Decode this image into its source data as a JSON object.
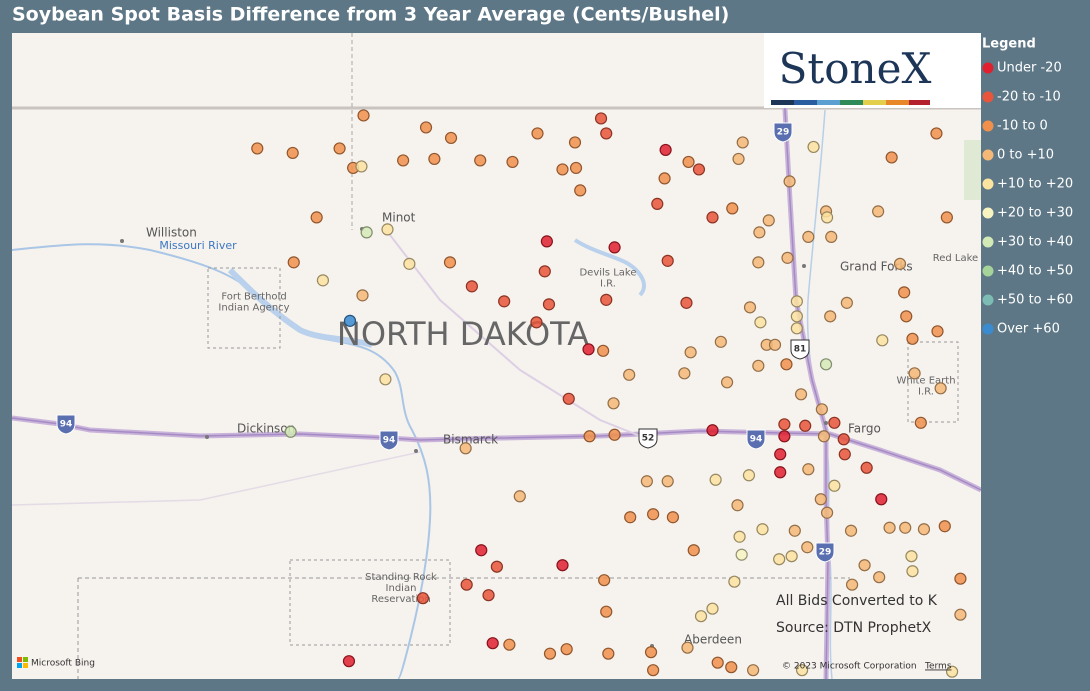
{
  "title": "Soybean Spot Basis Difference from 3 Year Average (Cents/Bushel)",
  "logo": "StoneX",
  "legend": {
    "title": "Legend",
    "items": [
      {
        "label": "Under -20",
        "color": "#e0202f"
      },
      {
        "label": "-20 to -10",
        "color": "#e8553a"
      },
      {
        "label": "-10 to 0",
        "color": "#f0904b"
      },
      {
        "label": "0 to +10",
        "color": "#f5b877"
      },
      {
        "label": "+10 to +20",
        "color": "#fbe3a0"
      },
      {
        "label": "+20 to +30",
        "color": "#f7f4c2"
      },
      {
        "label": "+30 to +40",
        "color": "#d3eab6"
      },
      {
        "label": "+40 to +50",
        "color": "#a5d39a"
      },
      {
        "label": "+50 to +60",
        "color": "#7cbcb4"
      },
      {
        "label": "Over +60",
        "color": "#3a8bd0"
      }
    ]
  },
  "map_labels": [
    "Williston",
    "Minot",
    "Grand Forks",
    "Fargo",
    "Bismarck",
    "Dickinson",
    "Aberdeen",
    "Missouri River",
    "Fort Berthold Indian Agency",
    "Devils Lake I.R.",
    "Standing Rock Indian Reservation",
    "NORTH DAKOTA",
    "White Earth I.R.",
    "Red Lake Res",
    "29",
    "94",
    "94",
    "94",
    "52",
    "81",
    "29"
  ],
  "credits": {
    "note": "All Bids Converted to K",
    "source": "Source: DTN ProphetX",
    "bing": "Microsoft Bing",
    "copyright": "© 2023 Microsoft Corporation",
    "terms": "Terms"
  },
  "points": [
    [
      -101.29,
      48.98,
      2
    ],
    [
      -100.69,
      48.9,
      2
    ],
    [
      -100.45,
      48.83,
      2
    ],
    [
      -99.62,
      48.86,
      2
    ],
    [
      -99.01,
      48.96,
      1
    ],
    [
      -98.96,
      48.86,
      1
    ],
    [
      -98.39,
      48.75,
      0
    ],
    [
      -97.65,
      48.8,
      3
    ],
    [
      -96.97,
      48.77,
      4
    ],
    [
      -95.79,
      48.86,
      2
    ],
    [
      -102.31,
      48.76,
      2
    ],
    [
      -101.97,
      48.73,
      2
    ],
    [
      -101.52,
      48.76,
      2
    ],
    [
      -101.39,
      48.63,
      2
    ],
    [
      -101.31,
      48.64,
      4
    ],
    [
      -100.91,
      48.68,
      2
    ],
    [
      -100.61,
      48.69,
      2
    ],
    [
      -100.17,
      48.68,
      2
    ],
    [
      -99.86,
      48.67,
      2
    ],
    [
      -99.38,
      48.62,
      2
    ],
    [
      -99.25,
      48.63,
      2
    ],
    [
      -99.26,
      48.8,
      2
    ],
    [
      -98.17,
      48.67,
      2
    ],
    [
      -98.07,
      48.62,
      1
    ],
    [
      -97.69,
      48.69,
      3
    ],
    [
      -96.22,
      48.7,
      2
    ],
    [
      -98.4,
      48.56,
      2
    ],
    [
      -97.2,
      48.54,
      3
    ],
    [
      -99.21,
      48.48,
      2
    ],
    [
      -98.47,
      48.39,
      1
    ],
    [
      -97.94,
      48.3,
      1
    ],
    [
      -97.75,
      48.36,
      2
    ],
    [
      -96.85,
      48.34,
      3
    ],
    [
      -96.84,
      48.3,
      4
    ],
    [
      -96.35,
      48.34,
      3
    ],
    [
      -95.69,
      48.3,
      2
    ],
    [
      -101.74,
      48.3,
      2
    ],
    [
      -101.26,
      48.2,
      6
    ],
    [
      -101.06,
      48.22,
      4
    ],
    [
      -99.53,
      48.14,
      0
    ],
    [
      -98.88,
      48.1,
      0
    ],
    [
      -98.37,
      48.01,
      1
    ],
    [
      -97.49,
      48.2,
      3
    ],
    [
      -97.4,
      48.28,
      3
    ],
    [
      -97.02,
      48.17,
      3
    ],
    [
      -96.8,
      48.17,
      3
    ],
    [
      -101.96,
      48.0,
      2
    ],
    [
      -100.85,
      47.99,
      4
    ],
    [
      -100.46,
      48.0,
      2
    ],
    [
      -99.55,
      47.94,
      1
    ],
    [
      -97.5,
      48.0,
      3
    ],
    [
      -97.22,
      48.03,
      3
    ],
    [
      -96.14,
      47.99,
      3
    ],
    [
      -101.68,
      47.88,
      4
    ],
    [
      -100.25,
      47.84,
      1
    ],
    [
      -101.3,
      47.78,
      3
    ],
    [
      -99.94,
      47.74,
      1
    ],
    [
      -99.51,
      47.72,
      1
    ],
    [
      -98.96,
      47.75,
      1
    ],
    [
      -98.19,
      47.73,
      1
    ],
    [
      -97.58,
      47.7,
      3
    ],
    [
      -97.13,
      47.74,
      4
    ],
    [
      -96.65,
      47.73,
      3
    ],
    [
      -96.1,
      47.8,
      2
    ],
    [
      -101.42,
      47.61,
      9
    ],
    [
      -99.63,
      47.6,
      1
    ],
    [
      -97.48,
      47.6,
      4
    ],
    [
      -97.13,
      47.64,
      4
    ],
    [
      -96.81,
      47.64,
      3
    ],
    [
      -96.08,
      47.64,
      2
    ],
    [
      -95.78,
      47.54,
      2
    ],
    [
      -99.13,
      47.42,
      0
    ],
    [
      -98.99,
      47.41,
      2
    ],
    [
      -98.15,
      47.4,
      3
    ],
    [
      -97.86,
      47.47,
      3
    ],
    [
      -97.42,
      47.45,
      3
    ],
    [
      -97.34,
      47.45,
      3
    ],
    [
      -97.13,
      47.56,
      4
    ],
    [
      -96.02,
      47.49,
      2
    ],
    [
      -96.31,
      47.48,
      4
    ],
    [
      -97.5,
      47.31,
      3
    ],
    [
      -97.23,
      47.32,
      2
    ],
    [
      -96.85,
      47.32,
      6
    ],
    [
      -98.74,
      47.25,
      3
    ],
    [
      -98.21,
      47.26,
      3
    ],
    [
      -101.08,
      47.22,
      4
    ],
    [
      -98.89,
      47.06,
      3
    ],
    [
      -99.32,
      47.09,
      1
    ],
    [
      -97.09,
      47.12,
      3
    ],
    [
      -97.8,
      47.2,
      3
    ],
    [
      -96.89,
      47.02,
      3
    ],
    [
      -96.0,
      47.26,
      3
    ],
    [
      -95.75,
      47.16,
      3
    ],
    [
      -101.99,
      46.87,
      6
    ],
    [
      -100.31,
      46.76,
      3
    ],
    [
      -99.12,
      46.84,
      2
    ],
    [
      -98.88,
      46.85,
      2
    ],
    [
      -97.94,
      46.88,
      0
    ],
    [
      -97.25,
      46.84,
      0
    ],
    [
      -97.25,
      46.92,
      1
    ],
    [
      -97.05,
      46.91,
      1
    ],
    [
      -96.77,
      46.93,
      1
    ],
    [
      -96.87,
      46.84,
      3
    ],
    [
      -96.68,
      46.82,
      1
    ],
    [
      -95.94,
      46.93,
      2
    ],
    [
      -97.29,
      46.72,
      0
    ],
    [
      -96.67,
      46.72,
      1
    ],
    [
      -97.29,
      46.6,
      0
    ],
    [
      -97.02,
      46.62,
      3
    ],
    [
      -96.46,
      46.63,
      1
    ],
    [
      -98.57,
      46.54,
      3
    ],
    [
      -98.37,
      46.54,
      3
    ],
    [
      -97.91,
      46.55,
      4
    ],
    [
      -97.59,
      46.58,
      4
    ],
    [
      -96.77,
      46.51,
      4
    ],
    [
      -99.79,
      46.44,
      3
    ],
    [
      -97.7,
      46.38,
      3
    ],
    [
      -96.9,
      46.42,
      3
    ],
    [
      -96.32,
      46.42,
      0
    ],
    [
      -96.84,
      46.33,
      3
    ],
    [
      -98.73,
      46.3,
      2
    ],
    [
      -98.51,
      46.32,
      2
    ],
    [
      -98.32,
      46.3,
      2
    ],
    [
      -97.46,
      46.22,
      4
    ],
    [
      -97.68,
      46.17,
      4
    ],
    [
      -97.15,
      46.21,
      3
    ],
    [
      -96.61,
      46.21,
      3
    ],
    [
      -96.24,
      46.23,
      3
    ],
    [
      -96.09,
      46.23,
      3
    ],
    [
      -95.91,
      46.22,
      3
    ],
    [
      -95.71,
      46.24,
      2
    ],
    [
      -100.16,
      46.08,
      0
    ],
    [
      -100.01,
      45.97,
      1
    ],
    [
      -99.38,
      45.98,
      0
    ],
    [
      -98.12,
      46.08,
      2
    ],
    [
      -97.66,
      46.05,
      5
    ],
    [
      -97.3,
      46.02,
      4
    ],
    [
      -97.18,
      46.04,
      4
    ],
    [
      -97.03,
      46.1,
      3
    ],
    [
      -96.48,
      45.98,
      3
    ],
    [
      -96.03,
      46.04,
      4
    ],
    [
      -96.02,
      45.94,
      4
    ],
    [
      -100.3,
      45.85,
      1
    ],
    [
      -100.09,
      45.78,
      1
    ],
    [
      -100.72,
      45.76,
      1
    ],
    [
      -98.98,
      45.88,
      2
    ],
    [
      -97.73,
      45.87,
      4
    ],
    [
      -96.6,
      45.85,
      3
    ],
    [
      -96.34,
      45.9,
      3
    ],
    [
      -95.56,
      45.89,
      2
    ],
    [
      -98.96,
      45.67,
      2
    ],
    [
      -97.94,
      45.69,
      4
    ],
    [
      -98.05,
      45.64,
      4
    ],
    [
      -95.56,
      45.65,
      3
    ],
    [
      -100.05,
      45.46,
      0
    ],
    [
      -99.89,
      45.45,
      2
    ],
    [
      -99.5,
      45.39,
      2
    ],
    [
      -99.34,
      45.42,
      2
    ],
    [
      -98.94,
      45.39,
      2
    ],
    [
      -98.53,
      45.4,
      2
    ],
    [
      -98.18,
      45.43,
      3
    ],
    [
      -101.43,
      45.34,
      0
    ],
    [
      -98.51,
      45.28,
      2
    ],
    [
      -97.89,
      45.33,
      2
    ],
    [
      -97.55,
      45.28,
      3
    ],
    [
      -97.76,
      45.3,
      2
    ],
    [
      -97.08,
      45.28,
      4
    ],
    [
      -95.64,
      45.27,
      4
    ]
  ]
}
